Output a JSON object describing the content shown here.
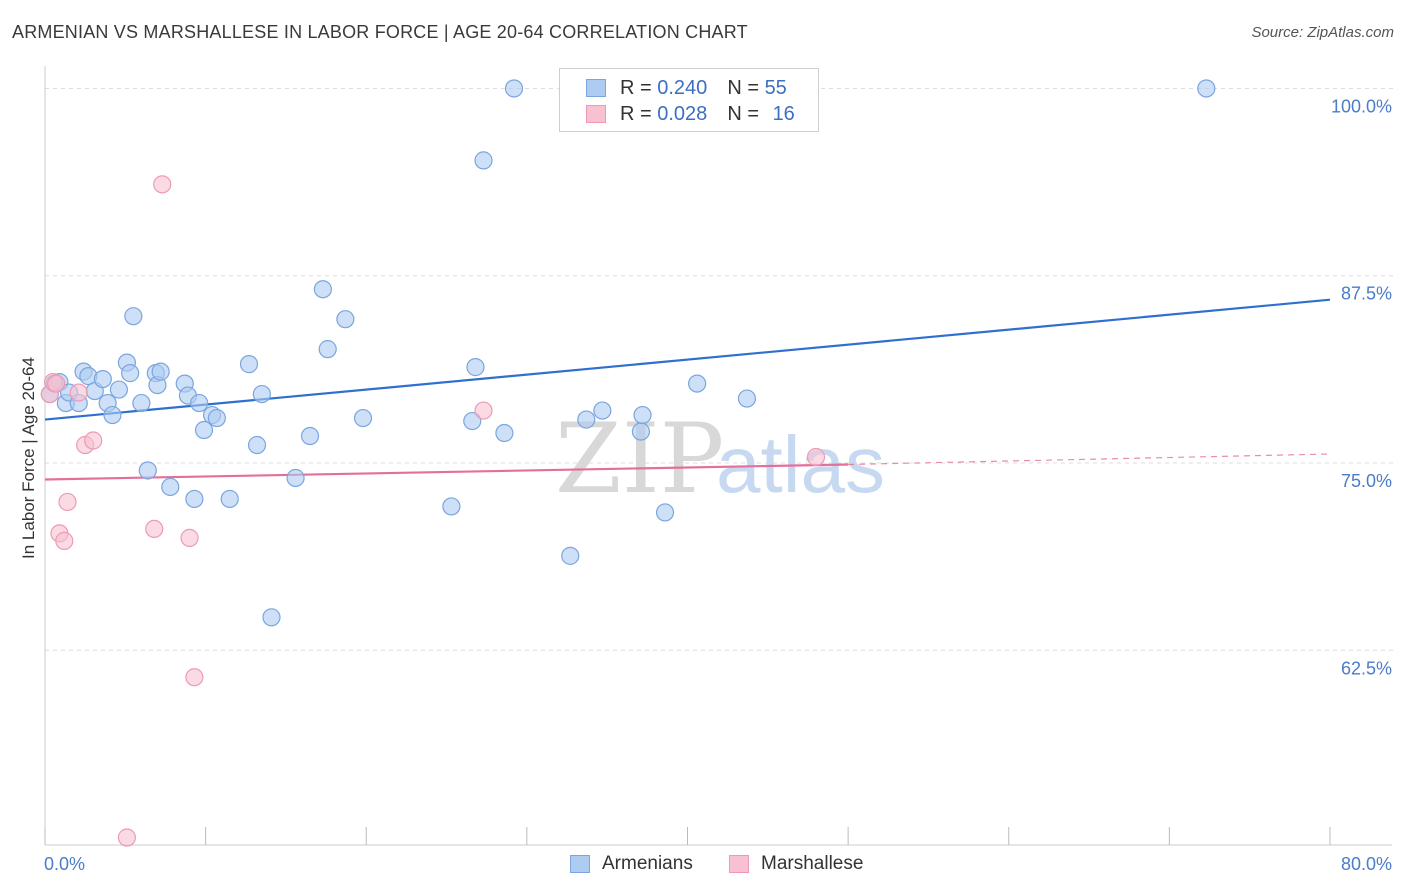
{
  "title": "ARMENIAN VS MARSHALLESE IN LABOR FORCE | AGE 20-64 CORRELATION CHART",
  "source": "Source: ZipAtlas.com",
  "watermark": {
    "zip": "ZIP",
    "atlas": "atlas"
  },
  "legend_top": {
    "armenians": {
      "r_label": "R = ",
      "r_value": "0.240",
      "n_label": "N = ",
      "n_value": "55"
    },
    "marshallese": {
      "r_label": "R = ",
      "r_value": "0.028",
      "n_label": "N = ",
      "n_value": "16"
    }
  },
  "colors": {
    "armenians_fill": "#aecbf2",
    "armenians_stroke": "#7ba5de",
    "armenians_line": "#2f6fcf",
    "marshallese_fill": "#f7c1d1",
    "marshallese_stroke": "#ee9ab5",
    "marshallese_line": "#e46f9a",
    "tick_text": "#4a7cc9",
    "grid": "#dddddd"
  },
  "chart_data": {
    "type": "scatter",
    "title": "ARMENIAN VS MARSHALLESE IN LABOR FORCE | AGE 20-64 CORRELATION CHART",
    "xlabel": "",
    "ylabel": "In Labor Force | Age 20-64",
    "xlim": [
      0,
      80
    ],
    "ylim": [
      49.5,
      101.5
    ],
    "x_tick_labels": [
      {
        "value": 0,
        "label": "0.0%"
      },
      {
        "value": 80,
        "label": "80.0%"
      }
    ],
    "y_tick_labels": [
      {
        "value": 100,
        "label": "100.0%"
      },
      {
        "value": 87.5,
        "label": "87.5%"
      },
      {
        "value": 75,
        "label": "75.0%"
      },
      {
        "value": 62.5,
        "label": "62.5%"
      }
    ],
    "grid": true,
    "legend_position": "bottom",
    "series": [
      {
        "name": "Armenians",
        "points": [
          [
            0.3,
            79.6
          ],
          [
            0.6,
            80.3
          ],
          [
            0.9,
            80.4
          ],
          [
            1.3,
            79.0
          ],
          [
            1.5,
            79.7
          ],
          [
            2.1,
            79.0
          ],
          [
            2.4,
            81.1
          ],
          [
            2.7,
            80.8
          ],
          [
            3.1,
            79.8
          ],
          [
            3.6,
            80.6
          ],
          [
            3.9,
            79.0
          ],
          [
            4.2,
            78.2
          ],
          [
            4.6,
            79.9
          ],
          [
            5.1,
            81.7
          ],
          [
            5.3,
            81.0
          ],
          [
            5.5,
            84.8
          ],
          [
            6.0,
            79.0
          ],
          [
            6.4,
            74.5
          ],
          [
            6.9,
            81.0
          ],
          [
            7.0,
            80.2
          ],
          [
            7.2,
            81.1
          ],
          [
            7.8,
            73.4
          ],
          [
            8.7,
            80.3
          ],
          [
            8.9,
            79.5
          ],
          [
            9.3,
            72.6
          ],
          [
            9.6,
            79.0
          ],
          [
            9.9,
            77.2
          ],
          [
            10.4,
            78.2
          ],
          [
            10.7,
            78.0
          ],
          [
            11.5,
            72.6
          ],
          [
            12.7,
            81.6
          ],
          [
            13.2,
            76.2
          ],
          [
            13.5,
            79.6
          ],
          [
            14.1,
            64.7
          ],
          [
            15.6,
            74.0
          ],
          [
            16.5,
            76.8
          ],
          [
            17.3,
            86.6
          ],
          [
            17.6,
            82.6
          ],
          [
            18.7,
            84.6
          ],
          [
            19.8,
            78.0
          ],
          [
            25.3,
            72.1
          ],
          [
            26.6,
            77.8
          ],
          [
            26.8,
            81.4
          ],
          [
            27.3,
            95.2
          ],
          [
            28.6,
            77.0
          ],
          [
            29.2,
            100.0
          ],
          [
            32.7,
            68.8
          ],
          [
            33.7,
            77.9
          ],
          [
            34.7,
            78.5
          ],
          [
            37.1,
            77.1
          ],
          [
            37.2,
            78.2
          ],
          [
            38.6,
            71.7
          ],
          [
            40.6,
            80.3
          ],
          [
            43.7,
            79.3
          ],
          [
            72.3,
            100.0
          ]
        ],
        "trend": {
          "x": [
            0,
            80
          ],
          "y": [
            77.9,
            85.9
          ]
        }
      },
      {
        "name": "Marshallese",
        "points": [
          [
            0.3,
            79.6
          ],
          [
            0.5,
            80.4
          ],
          [
            0.7,
            80.3
          ],
          [
            0.9,
            70.3
          ],
          [
            1.2,
            69.8
          ],
          [
            1.4,
            72.4
          ],
          [
            2.1,
            79.7
          ],
          [
            2.5,
            76.2
          ],
          [
            3.0,
            76.5
          ],
          [
            5.1,
            50.0
          ],
          [
            6.8,
            70.6
          ],
          [
            7.3,
            93.6
          ],
          [
            9.0,
            70.0
          ],
          [
            9.3,
            60.7
          ],
          [
            27.3,
            78.5
          ],
          [
            48.0,
            75.4
          ]
        ],
        "trend": {
          "x": [
            0,
            50
          ],
          "y": [
            73.9,
            74.9
          ]
        },
        "trend_extension": {
          "x": [
            50,
            80
          ],
          "y": [
            74.9,
            75.6
          ]
        }
      }
    ]
  }
}
